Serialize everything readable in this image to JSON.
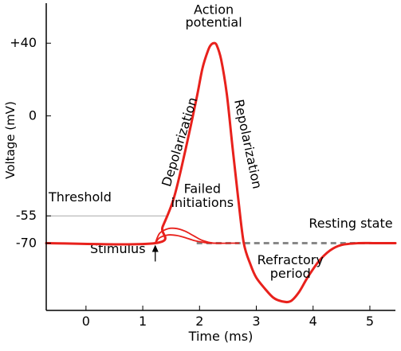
{
  "chart_data": {
    "type": "line",
    "title": "",
    "xlabel": "Time (ms)",
    "ylabel": "Voltage (mV)",
    "xlim": [
      -0.7,
      5.45
    ],
    "ylim": [
      -107,
      62
    ],
    "xticks": [
      0,
      1,
      2,
      3,
      4,
      5
    ],
    "yticks": [
      {
        "value": 40,
        "label": "+40"
      },
      {
        "value": 0,
        "label": "0"
      },
      {
        "value": -55,
        "label": "-55"
      },
      {
        "value": -70,
        "label": "-70"
      }
    ],
    "threshold": {
      "value": -55,
      "label": "Threshold"
    },
    "resting": {
      "value": -70,
      "label": "Resting state"
    },
    "stimulus": {
      "time": 1.22,
      "label": "Stimulus"
    },
    "action_potential": {
      "x": [
        -0.7,
        1.22,
        1.35,
        1.55,
        1.75,
        1.95,
        2.05,
        2.15,
        2.2,
        2.25,
        2.3,
        2.38,
        2.48,
        2.58,
        2.68,
        2.78,
        2.9,
        3.0,
        3.15,
        3.3,
        3.45,
        3.6,
        3.75,
        3.9,
        4.1,
        4.3,
        4.5,
        4.8,
        5.1,
        5.45
      ],
      "y": [
        -70,
        -70,
        -61,
        -45,
        -19,
        10,
        26,
        36,
        39,
        40,
        39,
        31,
        12,
        -17,
        -45,
        -70,
        -82,
        -89,
        -95,
        -100,
        -102,
        -102,
        -97,
        -89,
        -80,
        -74,
        -71,
        -70,
        -70,
        -70
      ]
    },
    "failed_initiations": [
      {
        "x": [
          1.22,
          1.3,
          1.45,
          1.6,
          1.75,
          1.9,
          2.05,
          2.25,
          2.5,
          2.7
        ],
        "y": [
          -70,
          -64.5,
          -62,
          -62,
          -63.5,
          -66,
          -68.5,
          -70,
          -70,
          -70
        ]
      },
      {
        "x": [
          1.22,
          1.3,
          1.45,
          1.6,
          1.75,
          1.9,
          2.05,
          2.2,
          2.4
        ],
        "y": [
          -70,
          -67,
          -65.5,
          -65.8,
          -67,
          -68.5,
          -69.5,
          -70,
          -70
        ]
      }
    ],
    "dashed_resting": {
      "x": [
        1.95,
        5.05
      ],
      "y": [
        -70,
        -70
      ]
    },
    "annotations": [
      {
        "text": "Action",
        "x": 2.25,
        "y": 56
      },
      {
        "text": "potential",
        "x": 2.25,
        "y": 49
      },
      {
        "text": "Failed",
        "x": 2.05,
        "y": -42.5
      },
      {
        "text": "initiations",
        "x": 2.05,
        "y": -50
      },
      {
        "text": "Refractory",
        "x": 3.6,
        "y": -81.5
      },
      {
        "text": "period",
        "x": 3.6,
        "y": -89
      },
      {
        "text": "Depolarization",
        "x": 1.72,
        "y": -15,
        "rotate": -73
      },
      {
        "text": "Repolarization",
        "x": 2.78,
        "y": -16,
        "rotate": 78
      }
    ]
  }
}
